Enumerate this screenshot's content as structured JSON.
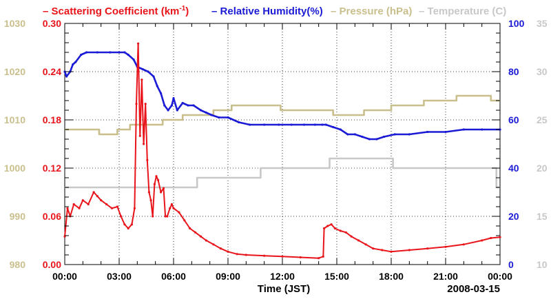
{
  "chart_data": {
    "type": "line",
    "title_legend": [
      {
        "name": "Scattering Coefficient",
        "unit_html": "(km-1)",
        "color": "#e8141a",
        "dash": "–"
      },
      {
        "name": "Relative Humidity(%)",
        "color": "#1b1bd6",
        "dash": "–"
      },
      {
        "name": "Pressure (hPa)",
        "color": "#c9bf8c",
        "dash": "–"
      },
      {
        "name": "Temperature (C)",
        "color": "#c8c8c8",
        "dash": "–"
      }
    ],
    "legend_text": {
      "sc": "Scattering Coefficient (km",
      "sc_sup": "-1",
      "sc_close": ")",
      "rh": "Relative Humidity(%)",
      "pres": "Pressure (hPa)",
      "temp": "Temperature (C)"
    },
    "xlabel": "Time (JST)",
    "date_label": "2008-03-15",
    "x_ticks": [
      "00:00",
      "03:00",
      "06:00",
      "09:00",
      "12:00",
      "15:00",
      "18:00",
      "21:00",
      "00:00"
    ],
    "xlim_hours": [
      0,
      24
    ],
    "left_axis_scattering": {
      "ticks": [
        "0.00",
        "0.06",
        "0.12",
        "0.18",
        "0.24",
        "0.30"
      ],
      "range": [
        0,
        0.3
      ],
      "color": "#e8141a"
    },
    "left_axis_pressure": {
      "ticks": [
        "980",
        "990",
        "1000",
        "1010",
        "1020",
        "1030"
      ],
      "range": [
        980,
        1030
      ],
      "color": "#c9bf8c"
    },
    "right_axis_humidity": {
      "ticks": [
        "0",
        "20",
        "40",
        "60",
        "80",
        "100"
      ],
      "range": [
        0,
        100
      ],
      "color": "#1b1bd6"
    },
    "right_axis_temperature": {
      "ticks": [
        "10",
        "15",
        "20",
        "25",
        "30",
        "35"
      ],
      "range": [
        10,
        35
      ],
      "color": "#c8c8c8"
    },
    "series": [
      {
        "name": "Scattering Coefficient",
        "axis": "scattering",
        "color": "#e8141a",
        "x": [
          0,
          0.15,
          0.3,
          0.5,
          0.8,
          1.0,
          1.3,
          1.6,
          1.8,
          2.0,
          2.3,
          2.6,
          2.9,
          3.1,
          3.3,
          3.5,
          3.7,
          3.85,
          3.95,
          4.05,
          4.15,
          4.25,
          4.35,
          4.45,
          4.55,
          4.65,
          4.75,
          4.85,
          4.95,
          5.05,
          5.15,
          5.3,
          5.45,
          5.55,
          5.65,
          5.8,
          5.9,
          6.0,
          6.3,
          6.6,
          6.9,
          7.2,
          7.5,
          7.8,
          8.2,
          8.6,
          9.0,
          9.5,
          10.0,
          11.0,
          12.0,
          13.0,
          14.0,
          14.25,
          14.3,
          14.5,
          14.7,
          14.9,
          15.2,
          15.5,
          15.8,
          16.2,
          16.6,
          17.0,
          17.5,
          18.0,
          19.0,
          20.0,
          21.0,
          22.0,
          23.0,
          23.5,
          24.0
        ],
        "values": [
          0.035,
          0.07,
          0.06,
          0.075,
          0.07,
          0.08,
          0.075,
          0.09,
          0.085,
          0.08,
          0.075,
          0.07,
          0.072,
          0.06,
          0.05,
          0.045,
          0.05,
          0.07,
          0.2,
          0.275,
          0.16,
          0.23,
          0.15,
          0.2,
          0.13,
          0.09,
          0.08,
          0.06,
          0.1,
          0.11,
          0.105,
          0.09,
          0.095,
          0.06,
          0.06,
          0.07,
          0.075,
          0.07,
          0.065,
          0.055,
          0.045,
          0.04,
          0.035,
          0.03,
          0.025,
          0.02,
          0.016,
          0.013,
          0.012,
          0.011,
          0.01,
          0.009,
          0.008,
          0.01,
          0.045,
          0.048,
          0.05,
          0.045,
          0.042,
          0.04,
          0.035,
          0.03,
          0.025,
          0.02,
          0.018,
          0.016,
          0.018,
          0.02,
          0.022,
          0.025,
          0.03,
          0.033,
          0.034
        ]
      },
      {
        "name": "Relative Humidity(%)",
        "axis": "humidity",
        "color": "#1b1bd6",
        "x": [
          0,
          0.1,
          0.3,
          0.45,
          0.6,
          0.9,
          1.2,
          1.8,
          2.5,
          3.0,
          3.3,
          3.5,
          3.8,
          4.0,
          4.3,
          4.6,
          4.9,
          5.1,
          5.3,
          5.5,
          5.7,
          5.9,
          6.0,
          6.2,
          6.5,
          6.8,
          7.1,
          7.5,
          7.8,
          8.1,
          8.5,
          9.0,
          9.6,
          10.2,
          11.0,
          11.8,
          12.5,
          13.2,
          13.8,
          14.2,
          14.4,
          14.8,
          15.2,
          15.6,
          16.0,
          16.4,
          16.8,
          17.2,
          17.6,
          18.2,
          19.0,
          20.0,
          21.0,
          22.0,
          23.0,
          24.0
        ],
        "values": [
          80,
          78,
          80,
          83,
          84,
          87,
          88,
          88,
          88,
          88,
          88,
          87,
          85,
          82,
          81,
          80,
          78,
          74,
          71,
          66,
          64,
          66,
          69,
          64,
          67,
          66,
          66,
          64,
          63,
          62,
          61,
          61,
          59,
          58,
          58,
          58,
          58,
          58,
          58,
          58,
          58,
          57,
          56,
          54,
          54,
          53,
          52,
          52,
          53,
          54,
          54,
          55,
          55,
          56,
          56,
          56
        ]
      },
      {
        "name": "Pressure (hPa)",
        "axis": "pressure",
        "color": "#c9bf8c",
        "x": [
          0,
          1.9,
          1.9,
          2.9,
          2.9,
          3.6,
          3.6,
          5.4,
          5.4,
          6.5,
          6.5,
          8.2,
          8.2,
          9.2,
          9.2,
          11.9,
          11.9,
          14.8,
          14.8,
          16.5,
          16.5,
          18.0,
          18.0,
          19.8,
          19.8,
          21.6,
          21.6,
          23.5,
          23.5,
          24.0
        ],
        "values": [
          1008,
          1008,
          1007,
          1007,
          1008,
          1008,
          1009,
          1009,
          1010,
          1010,
          1011,
          1011,
          1012,
          1012,
          1013,
          1013,
          1012,
          1012,
          1011,
          1011,
          1012,
          1012,
          1013,
          1013,
          1014,
          1014,
          1015,
          1015,
          1014,
          1014
        ]
      },
      {
        "name": "Temperature (C)",
        "axis": "temperature",
        "color": "#c8c8c8",
        "x": [
          0,
          7.3,
          7.3,
          10.8,
          10.8,
          14.6,
          14.6,
          18.1,
          18.1,
          23.8,
          23.8,
          24.0
        ],
        "values": [
          18,
          18,
          19,
          19,
          20,
          20,
          21,
          21,
          20,
          20,
          18,
          18
        ]
      }
    ]
  }
}
